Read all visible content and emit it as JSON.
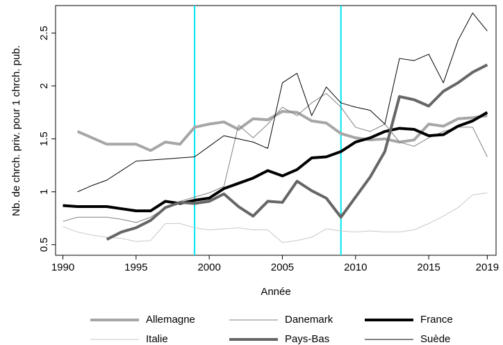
{
  "chart_data": {
    "type": "line",
    "x_label": "Année",
    "y_label": "Nb. de chrch. priv. pour 1 chrch. pub.",
    "x": [
      1990,
      1991,
      1992,
      1993,
      1994,
      1995,
      1996,
      1997,
      1998,
      1999,
      2000,
      2001,
      2002,
      2003,
      2004,
      2005,
      2006,
      2007,
      2008,
      2009,
      2010,
      2011,
      2012,
      2013,
      2014,
      2015,
      2016,
      2017,
      2018,
      2019
    ],
    "xlim": [
      1989.5,
      2019.6
    ],
    "ylim": [
      0.4,
      2.76
    ],
    "xticks": [
      1990,
      1995,
      2000,
      2005,
      2010,
      2015,
      2019
    ],
    "yticks": [
      0.5,
      1,
      1.5,
      2,
      2.5
    ],
    "vlines": [
      1999,
      2009
    ],
    "vline_color": "#00e5ee",
    "series": [
      {
        "name": "Allemagne",
        "color": "#a6a6a6",
        "line_width": 4,
        "values": [
          null,
          1.57,
          1.51,
          1.45,
          1.45,
          1.45,
          1.39,
          1.47,
          1.45,
          1.61,
          1.64,
          1.66,
          1.59,
          1.69,
          1.68,
          1.76,
          1.75,
          1.67,
          1.65,
          1.55,
          1.51,
          1.49,
          1.5,
          1.47,
          1.49,
          1.64,
          1.62,
          1.69,
          1.7,
          1.72
        ]
      },
      {
        "name": "Danemark",
        "color": "#808080",
        "line_width": 1,
        "values": [
          0.72,
          0.76,
          0.76,
          0.76,
          0.74,
          0.71,
          0.76,
          0.85,
          0.91,
          0.95,
          0.99,
          1.05,
          1.63,
          1.51,
          1.64,
          1.8,
          1.72,
          1.84,
          1.93,
          1.8,
          1.61,
          1.57,
          1.64,
          1.47,
          1.43,
          1.51,
          1.57,
          1.61,
          1.61,
          1.33
        ]
      },
      {
        "name": "France",
        "color": "#000000",
        "line_width": 4,
        "values": [
          0.87,
          0.86,
          0.86,
          0.86,
          0.84,
          0.82,
          0.82,
          0.91,
          0.89,
          0.92,
          0.94,
          1.03,
          1.08,
          1.13,
          1.2,
          1.15,
          1.21,
          1.32,
          1.33,
          1.38,
          1.47,
          1.51,
          1.57,
          1.6,
          1.59,
          1.53,
          1.54,
          1.62,
          1.67,
          1.75
        ]
      },
      {
        "name": "Italie",
        "color": "#c8c8c8",
        "line_width": 1,
        "values": [
          0.67,
          0.62,
          0.59,
          0.57,
          0.56,
          0.53,
          0.54,
          0.7,
          0.7,
          0.66,
          0.64,
          0.65,
          0.66,
          0.64,
          0.64,
          0.52,
          0.54,
          0.57,
          0.65,
          0.63,
          0.62,
          0.63,
          0.62,
          0.62,
          0.64,
          0.7,
          0.77,
          0.85,
          0.97,
          0.99
        ]
      },
      {
        "name": "Pays-Bas",
        "color": "#666666",
        "line_width": 4,
        "values": [
          null,
          null,
          null,
          0.55,
          0.62,
          0.66,
          0.73,
          0.85,
          0.9,
          0.89,
          0.91,
          0.98,
          0.86,
          0.77,
          0.91,
          0.9,
          1.1,
          1.01,
          0.94,
          0.76,
          0.95,
          1.14,
          1.38,
          1.9,
          1.87,
          1.81,
          1.95,
          2.03,
          2.13,
          2.2
        ]
      },
      {
        "name": "Suède",
        "color": "#000000",
        "line_width": 1,
        "values": [
          null,
          1.0,
          1.06,
          1.11,
          1.2,
          1.29,
          1.3,
          1.31,
          1.32,
          1.33,
          1.43,
          1.53,
          1.5,
          1.47,
          1.41,
          2.03,
          2.12,
          1.72,
          1.99,
          1.84,
          1.8,
          1.77,
          1.64,
          2.26,
          2.24,
          2.3,
          2.03,
          2.43,
          2.69,
          2.52
        ]
      }
    ]
  }
}
